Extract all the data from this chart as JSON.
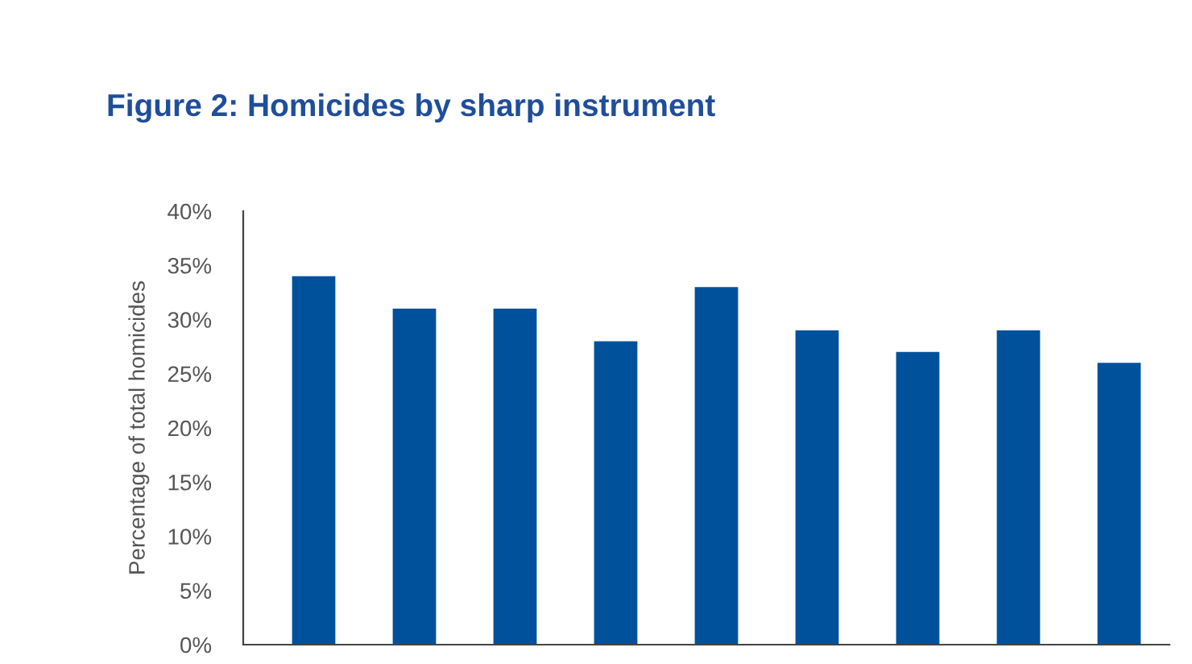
{
  "chart_data": {
    "type": "bar",
    "title": "Figure 2: Homicides by sharp instrument",
    "ylabel": "Percentage of total homicides",
    "categories": [
      null,
      null,
      null,
      null,
      null,
      null,
      null,
      null,
      null
    ],
    "values": [
      34,
      31,
      31,
      28,
      33,
      29,
      27,
      29,
      26
    ],
    "color": "#00519c",
    "ylim": [
      0,
      40
    ],
    "yticks": [
      {
        "value": 0,
        "label": "0%"
      },
      {
        "value": 5,
        "label": "5%"
      },
      {
        "value": 10,
        "label": "10%"
      },
      {
        "value": 15,
        "label": "15%"
      },
      {
        "value": 20,
        "label": "20%"
      },
      {
        "value": 25,
        "label": "25%"
      },
      {
        "value": 30,
        "label": "30%"
      },
      {
        "value": 35,
        "label": "35%"
      },
      {
        "value": 40,
        "label": "40%"
      }
    ],
    "grid": false,
    "legend": false
  }
}
